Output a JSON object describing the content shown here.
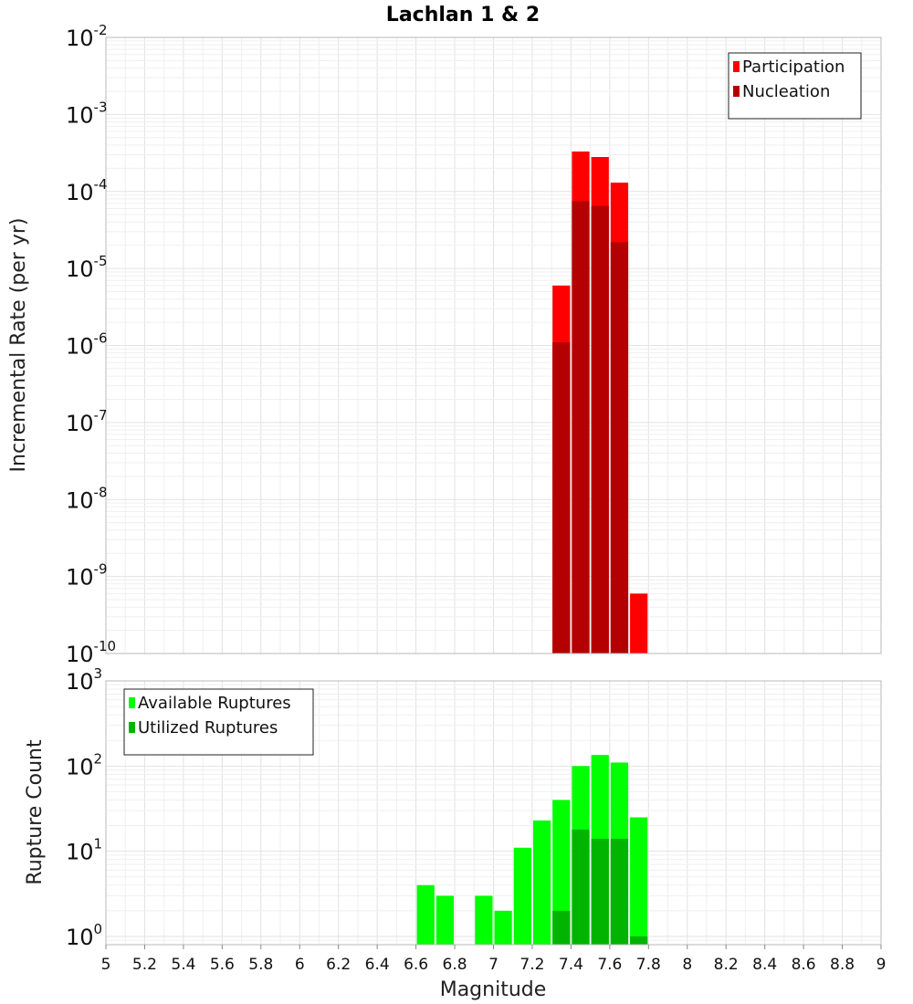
{
  "title": "Lachlan 1 & 2",
  "chart_data": [
    {
      "type": "bar",
      "yscale": "log",
      "ylabel": "Incremental Rate (per yr)",
      "ylim": [
        1e-10,
        0.01
      ],
      "xlim": [
        5,
        9
      ],
      "grid": true,
      "legend_position": "top-right",
      "y_ticks": [
        {
          "base": "10",
          "exp": "-10"
        },
        {
          "base": "10",
          "exp": "-9"
        },
        {
          "base": "10",
          "exp": "-8"
        },
        {
          "base": "10",
          "exp": "-7"
        },
        {
          "base": "10",
          "exp": "-6"
        },
        {
          "base": "10",
          "exp": "-5"
        },
        {
          "base": "10",
          "exp": "-4"
        },
        {
          "base": "10",
          "exp": "-3"
        },
        {
          "base": "10",
          "exp": "-2"
        }
      ],
      "x": [
        7.35,
        7.45,
        7.55,
        7.65,
        7.75
      ],
      "series": [
        {
          "name": "Participation",
          "color": "#ff0000",
          "values": [
            6e-06,
            0.00033,
            0.00028,
            0.00013,
            6e-10
          ]
        },
        {
          "name": "Nucleation",
          "color": "#b40000",
          "values": [
            1.1e-06,
            7.5e-05,
            6.5e-05,
            2.2e-05,
            null
          ]
        }
      ]
    },
    {
      "type": "bar",
      "yscale": "log",
      "ylabel": "Rupture Count",
      "xlabel": "Magnitude",
      "ylim": [
        0.8,
        1000
      ],
      "xlim": [
        5,
        9
      ],
      "grid": true,
      "legend_position": "top-left",
      "y_ticks": [
        {
          "base": "10",
          "exp": "0"
        },
        {
          "base": "10",
          "exp": "1"
        },
        {
          "base": "10",
          "exp": "2"
        },
        {
          "base": "10",
          "exp": "3"
        }
      ],
      "x_ticks": [
        "5",
        "5.2",
        "5.4",
        "5.6",
        "5.8",
        "6",
        "6.2",
        "6.4",
        "6.6",
        "6.8",
        "7",
        "7.2",
        "7.4",
        "7.6",
        "7.8",
        "8",
        "8.2",
        "8.4",
        "8.6",
        "8.8",
        "9"
      ],
      "x": [
        6.65,
        6.75,
        6.95,
        7.05,
        7.15,
        7.25,
        7.35,
        7.45,
        7.55,
        7.65,
        7.75
      ],
      "series": [
        {
          "name": "Available Ruptures",
          "color": "#00ff00",
          "values": [
            4,
            3,
            3,
            2,
            11,
            23,
            40,
            100,
            135,
            110,
            25
          ]
        },
        {
          "name": "Utilized Ruptures",
          "color": "#00b400",
          "values": [
            null,
            null,
            null,
            null,
            null,
            null,
            2,
            18,
            14,
            14,
            1
          ]
        }
      ]
    }
  ]
}
